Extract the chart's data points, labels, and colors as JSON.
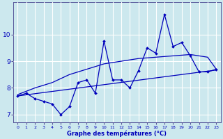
{
  "xlabel": "Graphe des températures (°C)",
  "background_color": "#cce8ee",
  "grid_color": "#ffffff",
  "line_color": "#0000bb",
  "x_hours": [
    0,
    1,
    2,
    3,
    4,
    5,
    6,
    7,
    8,
    9,
    10,
    11,
    12,
    13,
    14,
    15,
    16,
    17,
    18,
    19,
    20,
    21,
    22,
    23
  ],
  "data_line": [
    7.7,
    7.8,
    7.6,
    7.5,
    7.4,
    7.0,
    7.3,
    8.2,
    8.3,
    7.8,
    9.75,
    8.3,
    8.3,
    8.0,
    8.65,
    9.5,
    9.3,
    10.75,
    9.55,
    9.7,
    9.2,
    8.6,
    8.6,
    8.7
  ],
  "upper_line_x": [
    0,
    2,
    4,
    6,
    8,
    10,
    12,
    14,
    16,
    18,
    20,
    22,
    23
  ],
  "upper_line_y": [
    7.75,
    8.0,
    8.2,
    8.5,
    8.7,
    8.9,
    9.0,
    9.1,
    9.15,
    9.2,
    9.25,
    9.15,
    8.7
  ],
  "lower_line_x": [
    0,
    23
  ],
  "lower_line_y": [
    7.7,
    8.67
  ],
  "ylim": [
    6.7,
    11.2
  ],
  "yticks": [
    7,
    8,
    9,
    10
  ],
  "xticks": [
    0,
    1,
    2,
    3,
    4,
    5,
    6,
    7,
    8,
    9,
    10,
    11,
    12,
    13,
    14,
    15,
    16,
    17,
    18,
    19,
    20,
    21,
    22,
    23
  ],
  "figwidth": 3.2,
  "figheight": 2.0,
  "dpi": 100
}
